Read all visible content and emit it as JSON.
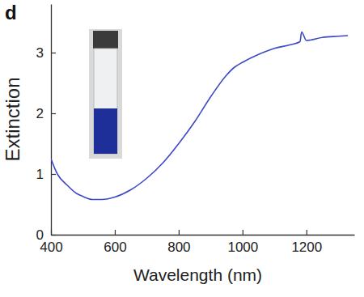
{
  "chart_data": {
    "type": "line",
    "title": "d",
    "x_label": "Wavelength (nm)",
    "y_label": "Extinction",
    "x": [
      400,
      420,
      450,
      480,
      500,
      530,
      560,
      600,
      650,
      700,
      750,
      800,
      850,
      900,
      950,
      975,
      1000,
      1050,
      1100,
      1150,
      1180,
      1185,
      1200,
      1250,
      1300,
      1330
    ],
    "values": [
      1.25,
      1.0,
      0.82,
      0.68,
      0.63,
      0.58,
      0.58,
      0.62,
      0.74,
      0.93,
      1.18,
      1.5,
      1.86,
      2.27,
      2.63,
      2.76,
      2.84,
      2.97,
      3.07,
      3.13,
      3.18,
      3.34,
      3.2,
      3.25,
      3.27,
      3.28
    ],
    "color": "#3d48c8",
    "xlim": [
      400,
      1350
    ],
    "xticks": [
      400,
      600,
      800,
      1000,
      1200
    ],
    "ylim": [
      0,
      3.8
    ],
    "yticks": [
      0,
      1,
      2,
      3
    ],
    "grid": false
  }
}
